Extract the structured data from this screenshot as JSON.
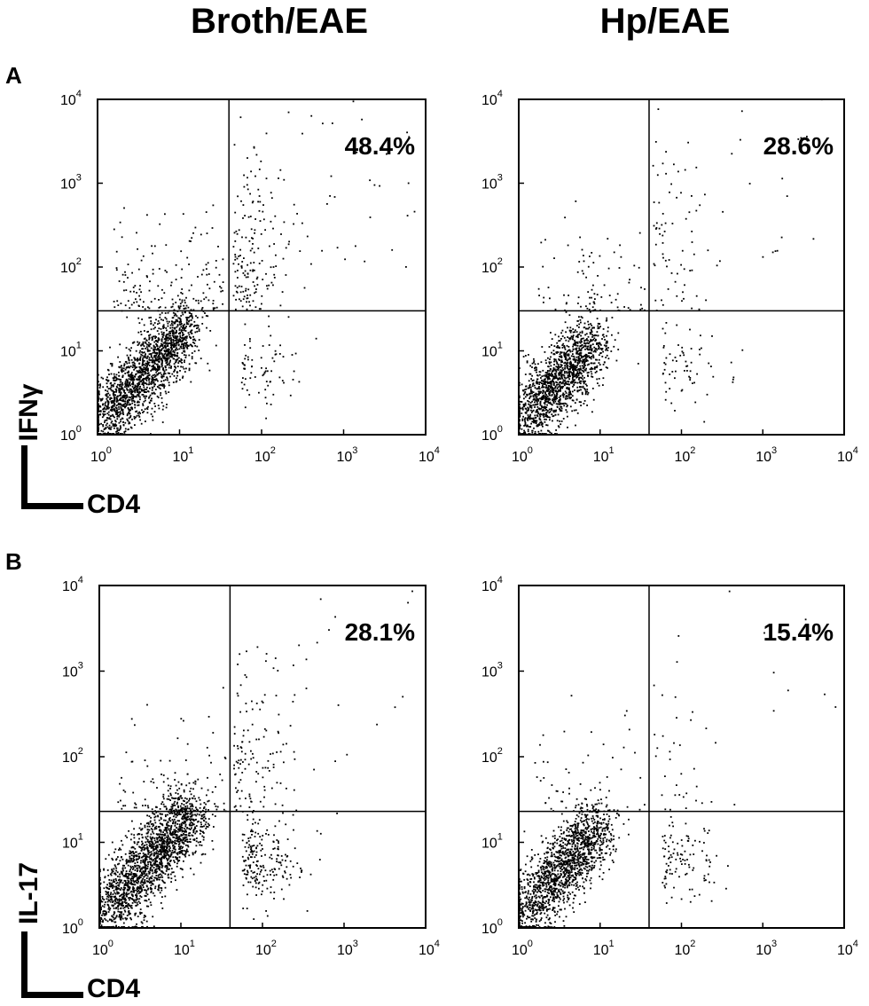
{
  "column_titles": [
    "Broth/EAE",
    "Hp/EAE"
  ],
  "panel_letters": [
    "A",
    "B"
  ],
  "row_axis_titles": {
    "A": {
      "y": "IFNγ",
      "x": "CD4"
    },
    "B": {
      "y": "IL-17",
      "x": "CD4"
    }
  },
  "tick_base": "10",
  "tick_exponents": [
    "0",
    "1",
    "2",
    "3",
    "4"
  ],
  "chart_data": [
    {
      "type": "scatter",
      "panel": "A",
      "column": "Broth/EAE",
      "xlabel": "CD4",
      "ylabel": "IFNγ",
      "xscale": "log",
      "yscale": "log",
      "xlim": [
        1,
        10000
      ],
      "ylim": [
        1,
        10000
      ],
      "gate": {
        "x": 40,
        "y": 30
      },
      "upper_right_percent": "48.4%"
    },
    {
      "type": "scatter",
      "panel": "A",
      "column": "Hp/EAE",
      "xlabel": "CD4",
      "ylabel": "IFNγ",
      "xscale": "log",
      "yscale": "log",
      "xlim": [
        1,
        10000
      ],
      "ylim": [
        1,
        10000
      ],
      "gate": {
        "x": 40,
        "y": 30
      },
      "upper_right_percent": "28.6%"
    },
    {
      "type": "scatter",
      "panel": "B",
      "column": "Broth/EAE",
      "xlabel": "CD4",
      "ylabel": "IL-17",
      "xscale": "log",
      "yscale": "log",
      "xlim": [
        1,
        10000
      ],
      "ylim": [
        1,
        10000
      ],
      "gate": {
        "x": 40,
        "y": 23
      },
      "upper_right_percent": "28.1%"
    },
    {
      "type": "scatter",
      "panel": "B",
      "column": "Hp/EAE",
      "xlabel": "CD4",
      "ylabel": "IL-17",
      "xscale": "log",
      "yscale": "log",
      "xlim": [
        1,
        10000
      ],
      "ylim": [
        1,
        10000
      ],
      "gate": {
        "x": 40,
        "y": 23
      },
      "upper_right_percent": "15.4%"
    }
  ]
}
